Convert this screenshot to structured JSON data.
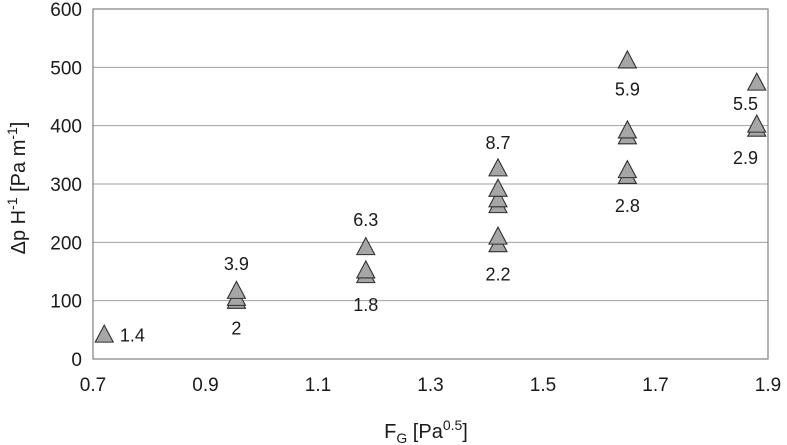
{
  "chart_data": {
    "type": "scatter",
    "xlabel": "F_G [Pa^0.5]",
    "xlabel_parts": {
      "main": "F",
      "sub": "G",
      "unit_open": " [Pa",
      "unit_sup": "0.5",
      "unit_close": "]"
    },
    "ylabel": "Δp H^-1 [Pa m^-1]",
    "ylabel_parts": {
      "pre": "Δp H",
      "sup1": "-1",
      "mid": " [Pa m",
      "sup2": "-1",
      "post": "]"
    },
    "xlim": [
      0.7,
      1.9
    ],
    "ylim": [
      0,
      600
    ],
    "xticks": [
      0.7,
      0.9,
      1.1,
      1.3,
      1.5,
      1.7,
      1.9
    ],
    "xtick_labels": [
      "0.7",
      "0.9",
      "1.1",
      "1.3",
      "1.5",
      "1.7",
      "1.9"
    ],
    "yticks": [
      0,
      100,
      200,
      300,
      400,
      500,
      600
    ],
    "ytick_labels": [
      "0",
      "100",
      "200",
      "300",
      "400",
      "500",
      "600"
    ],
    "grid": "horizontal",
    "marker": "triangle",
    "marker_color": "#a6a6a6",
    "series": [
      {
        "points": [
          {
            "x": 0.72,
            "y": 40
          },
          {
            "x": 0.955,
            "y": 98
          },
          {
            "x": 0.955,
            "y": 103
          },
          {
            "x": 0.955,
            "y": 115
          },
          {
            "x": 1.185,
            "y": 142
          },
          {
            "x": 1.185,
            "y": 150
          },
          {
            "x": 1.185,
            "y": 190
          },
          {
            "x": 1.42,
            "y": 195
          },
          {
            "x": 1.42,
            "y": 208
          },
          {
            "x": 1.42,
            "y": 262
          },
          {
            "x": 1.42,
            "y": 272
          },
          {
            "x": 1.42,
            "y": 290
          },
          {
            "x": 1.42,
            "y": 325
          },
          {
            "x": 1.65,
            "y": 312
          },
          {
            "x": 1.65,
            "y": 322
          },
          {
            "x": 1.65,
            "y": 380
          },
          {
            "x": 1.65,
            "y": 390
          },
          {
            "x": 1.65,
            "y": 510
          },
          {
            "x": 1.88,
            "y": 393
          },
          {
            "x": 1.88,
            "y": 400
          },
          {
            "x": 1.88,
            "y": 472
          }
        ]
      }
    ],
    "annotations": [
      {
        "text": "1.4",
        "x": 0.77,
        "y": 40
      },
      {
        "text": "3.9",
        "x": 0.955,
        "y": 163
      },
      {
        "text": "2",
        "x": 0.955,
        "y": 52
      },
      {
        "text": "6.3",
        "x": 1.185,
        "y": 238
      },
      {
        "text": "1.8",
        "x": 1.185,
        "y": 93
      },
      {
        "text": "8.7",
        "x": 1.42,
        "y": 370
      },
      {
        "text": "2.2",
        "x": 1.42,
        "y": 145
      },
      {
        "text": "5.9",
        "x": 1.65,
        "y": 462
      },
      {
        "text": "2.8",
        "x": 1.65,
        "y": 262
      },
      {
        "text": "5.5",
        "x": 1.86,
        "y": 437
      },
      {
        "text": "2.9",
        "x": 1.86,
        "y": 345
      }
    ]
  }
}
